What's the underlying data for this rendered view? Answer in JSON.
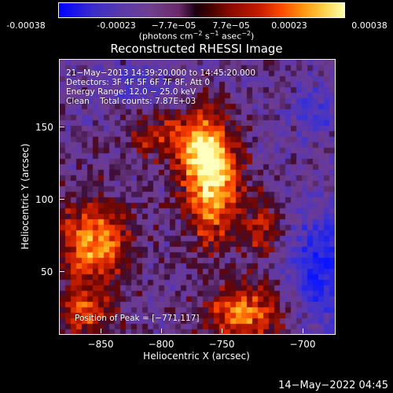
{
  "colorbar": {
    "ticks": [
      "-0.00038",
      "-0.00023",
      "−7.7e−05",
      "7.7e−05",
      "0.00023",
      "0.00038"
    ],
    "units_text": "(photons cm",
    "units_exp1": "−2",
    "units_mid1": " s",
    "units_exp2": "−1",
    "units_mid2": " asec",
    "units_exp3": "−2",
    "units_end": ")"
  },
  "title": "Reconstructed RHESSI Image",
  "info": {
    "line1": "21−May−2013 14:39:20.000 to 14:45:20.000",
    "line2": "Detectors: 3F 4F 5F 6F 7F 8F, Att 0",
    "line3": "Energy Range: 12.0 − 25.0 keV",
    "line4": "Clean    Total counts: 7.87E+03",
    "peak": "Position of Peak = [−771,117]"
  },
  "axes": {
    "xlabel": "Heliocentric X (arcsec)",
    "ylabel": "Heliocentric Y (arcsec)",
    "xticks": [
      "−850",
      "−800",
      "−750",
      "−700"
    ],
    "yticks": [
      "150",
      "100",
      "50"
    ]
  },
  "timestamp": "14−May−2022 04:45",
  "colors": {
    "background": "#000000",
    "axis": "#ffffff"
  }
}
